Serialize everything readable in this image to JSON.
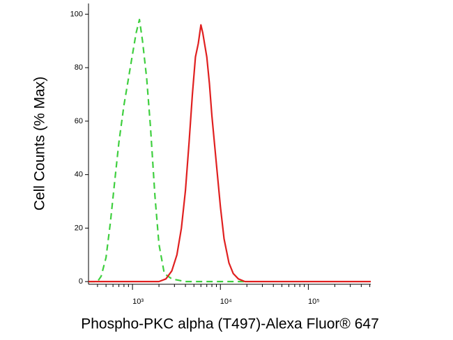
{
  "chart_data": {
    "type": "line",
    "x_label": "Phospho-PKC alpha (T497)-Alexa Fluor® 647",
    "y_label": "Cell Counts (% Max)",
    "x_scale": "log",
    "xlim": [
      316,
      513000
    ],
    "ylim": [
      -1,
      104
    ],
    "xticks": [
      {
        "value": 1000,
        "label": "10³"
      },
      {
        "value": 10000,
        "label": "10⁴"
      },
      {
        "value": 100000,
        "label": "10⁵"
      }
    ],
    "xminorticks": [
      400,
      500,
      600,
      700,
      800,
      900,
      2000,
      3000,
      4000,
      5000,
      6000,
      7000,
      8000,
      9000,
      20000,
      30000,
      40000,
      50000,
      60000,
      70000,
      80000,
      90000,
      200000,
      300000,
      400000,
      500000
    ],
    "yticks": [
      0,
      20,
      40,
      60,
      80,
      100
    ],
    "series": [
      {
        "color": "#3fcf3f",
        "dash": true,
        "x": [
          316,
          400,
          440,
          500,
          560,
          630,
          700,
          800,
          900,
          1000,
          1100,
          1200,
          1300,
          1450,
          1600,
          1800,
          2000,
          2300,
          2800,
          4000,
          8000,
          20000
        ],
        "values": [
          0,
          0,
          2,
          9,
          22,
          38,
          52,
          66,
          76,
          85,
          93,
          98,
          90,
          76,
          58,
          32,
          14,
          3,
          1,
          0,
          0,
          0
        ]
      },
      {
        "color": "#e02020",
        "dash": false,
        "x": [
          316,
          1000,
          2000,
          2400,
          2800,
          3200,
          3600,
          4000,
          4400,
          4800,
          5200,
          5600,
          6000,
          6300,
          6600,
          7000,
          7500,
          8000,
          9000,
          10000,
          11000,
          12500,
          14000,
          16000,
          19000,
          24000,
          30000,
          513000
        ],
        "values": [
          0,
          0,
          0,
          1,
          4,
          10,
          20,
          34,
          52,
          70,
          84,
          89,
          96,
          93,
          89,
          84,
          74,
          62,
          44,
          28,
          16,
          7,
          3,
          1,
          0,
          0,
          0,
          0
        ]
      }
    ]
  }
}
